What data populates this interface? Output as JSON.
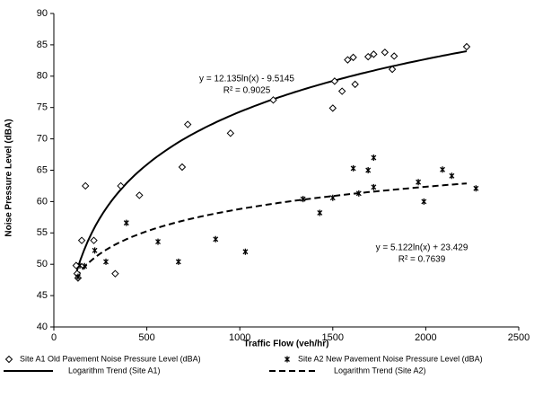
{
  "chart_data": {
    "type": "scatter",
    "x_label": "Traffic Flow (veh/hr)",
    "y_label": "Noise Pressure Level (dBA)",
    "xlim": [
      0,
      2500
    ],
    "xticks": [
      0,
      500,
      1000,
      1500,
      2000,
      2500
    ],
    "ylim": [
      40,
      90
    ],
    "yticks": [
      40,
      45,
      50,
      55,
      60,
      65,
      70,
      75,
      80,
      85,
      90
    ],
    "grid": false,
    "series": [
      {
        "name": "Site A1 Old Pavement Noise Pressure Level (dBA)",
        "marker": "diamond",
        "color": "#000000",
        "x": [
          120,
          125,
          130,
          150,
          170,
          215,
          330,
          360,
          460,
          690,
          720,
          950,
          1180,
          1500,
          1510,
          1550,
          1580,
          1610,
          1620,
          1690,
          1720,
          1780,
          1820,
          1830,
          2220
        ],
        "values": [
          49.8,
          48.5,
          47.8,
          53.8,
          62.5,
          53.8,
          48.5,
          62.5,
          61,
          65.5,
          72.3,
          70.9,
          76.2,
          74.9,
          79.2,
          77.6,
          82.6,
          83,
          78.7,
          83.1,
          83.5,
          83.8,
          81.1,
          83.2,
          84.7
        ]
      },
      {
        "name": "Site A2 New Pavement Noise Pressure Level (dBA)",
        "marker": "asterisk",
        "color": "#000000",
        "x": [
          130,
          140,
          165,
          220,
          280,
          390,
          560,
          670,
          870,
          1030,
          1340,
          1430,
          1500,
          1610,
          1640,
          1690,
          1720,
          1720,
          1960,
          1990,
          2090,
          2140,
          2270
        ],
        "values": [
          48,
          49.8,
          49.7,
          52.2,
          50.4,
          56.6,
          53.6,
          50.4,
          54,
          52,
          60.4,
          58.2,
          60.6,
          65.3,
          61.3,
          65,
          62.3,
          67,
          63.1,
          60,
          65.1,
          64.1,
          62.1
        ]
      }
    ],
    "trends": [
      {
        "name": "Logarithm Trend (Site A1)",
        "style": "solid",
        "equation": "y = 12.135ln(x) - 9.5145",
        "r2": "R² = 0.9025",
        "coefficients": [
          12.135,
          -9.5145
        ],
        "x_range": [
          120,
          2220
        ]
      },
      {
        "name": "Logarithm Trend (Site A2)",
        "style": "dashed",
        "equation": "y = 5.122ln(x) + 23.429",
        "r2": "R² = 0.7639",
        "coefficients": [
          5.122,
          23.429
        ],
        "x_range": [
          120,
          2220
        ]
      }
    ]
  }
}
